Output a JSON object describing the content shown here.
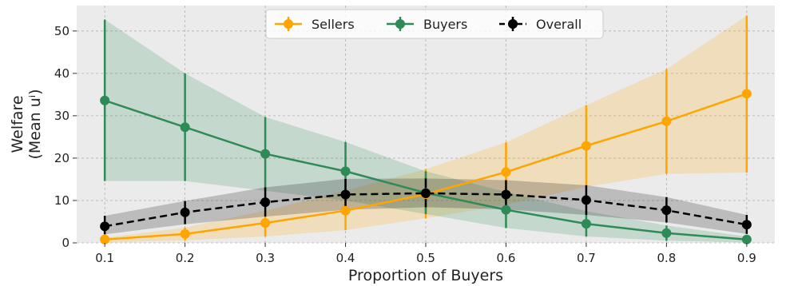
{
  "chart_data": {
    "type": "line",
    "x": [
      0.1,
      0.2,
      0.3,
      0.4,
      0.5,
      0.6,
      0.7,
      0.8,
      0.9
    ],
    "x_tick_labels": [
      "0.1",
      "0.2",
      "0.3",
      "0.4",
      "0.5",
      "0.6",
      "0.7",
      "0.8",
      "0.9"
    ],
    "y_ticks": [
      0,
      10,
      20,
      30,
      40,
      50
    ],
    "xlim": [
      0.065,
      0.935
    ],
    "ylim": [
      0,
      56
    ],
    "xlabel": "Proportion of Buyers",
    "ylabel_line1": "Welfare",
    "ylabel_line2": "(Mean uⁱ)",
    "grid": true,
    "legend_position": "top-center",
    "series": [
      {
        "name": "Sellers",
        "color": "#FFA500",
        "line_style": "solid",
        "values": [
          0.8,
          2.1,
          4.7,
          7.6,
          11.5,
          16.7,
          22.9,
          28.7,
          35.2
        ],
        "err_low": [
          0.1,
          0.6,
          1.5,
          3.0,
          5.8,
          9.0,
          13.2,
          16.3,
          16.6
        ],
        "err_high": [
          1.2,
          3.6,
          7.6,
          12.3,
          17.4,
          23.7,
          32.5,
          41.0,
          53.6
        ]
      },
      {
        "name": "Buyers",
        "color": "#2E8B57",
        "line_style": "solid",
        "values": [
          33.6,
          27.3,
          21.0,
          16.9,
          11.8,
          7.8,
          4.5,
          2.3,
          0.8
        ],
        "err_low": [
          14.6,
          14.6,
          12.3,
          10.0,
          6.8,
          3.5,
          1.5,
          0.5,
          0.1
        ],
        "err_high": [
          52.7,
          40.0,
          29.7,
          23.8,
          16.9,
          12.0,
          7.5,
          4.1,
          1.5
        ]
      },
      {
        "name": "Overall",
        "color": "#000000",
        "line_style": "dashed",
        "values": [
          3.9,
          7.2,
          9.6,
          11.4,
          11.7,
          11.4,
          10.1,
          7.7,
          4.3
        ],
        "err_low": [
          2.0,
          4.4,
          6.2,
          7.8,
          8.4,
          7.9,
          6.6,
          4.8,
          2.1
        ],
        "err_high": [
          6.4,
          9.9,
          13.1,
          15.1,
          15.2,
          14.8,
          13.6,
          10.8,
          6.6
        ]
      }
    ]
  },
  "colors": {
    "plot_background": "#EBEBEB",
    "grid": "#B0B0B0"
  }
}
